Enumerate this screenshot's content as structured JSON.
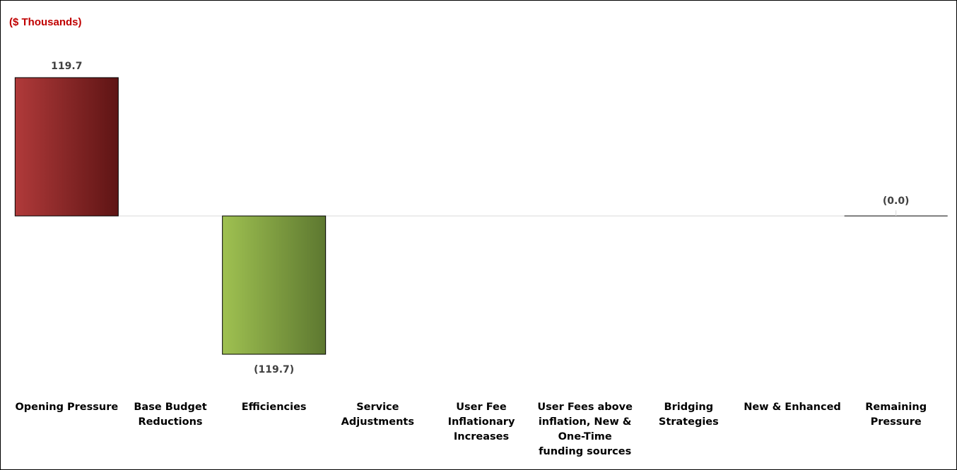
{
  "chart_data": {
    "type": "bar",
    "unit_label": "($ Thousands)",
    "categories": [
      "Opening Pressure",
      "Base Budget\nReductions",
      "Efficiencies",
      "Service\nAdjustments",
      "User Fee\nInflationary\nIncreases",
      "User Fees above\ninflation, New &\nOne-Time\nfunding sources",
      "Bridging\nStrategies",
      "New & Enhanced",
      "Remaining\nPressure"
    ],
    "values": [
      119.7,
      null,
      -119.7,
      null,
      null,
      null,
      null,
      null,
      -0.0
    ],
    "data_labels": [
      "119.7",
      "",
      "(119.7)",
      "",
      "",
      "",
      "",
      "",
      "(0.0)"
    ],
    "ylim": [
      -119.7,
      119.7
    ],
    "colors": {
      "pressure_light": "#b03a3a",
      "pressure_dark": "#5e1414",
      "efficiency_light": "#9fc151",
      "efficiency_dark": "#5d7830",
      "remaining": "#808080",
      "axis": "#d9d9d9",
      "unit_label": "#c00000"
    }
  }
}
